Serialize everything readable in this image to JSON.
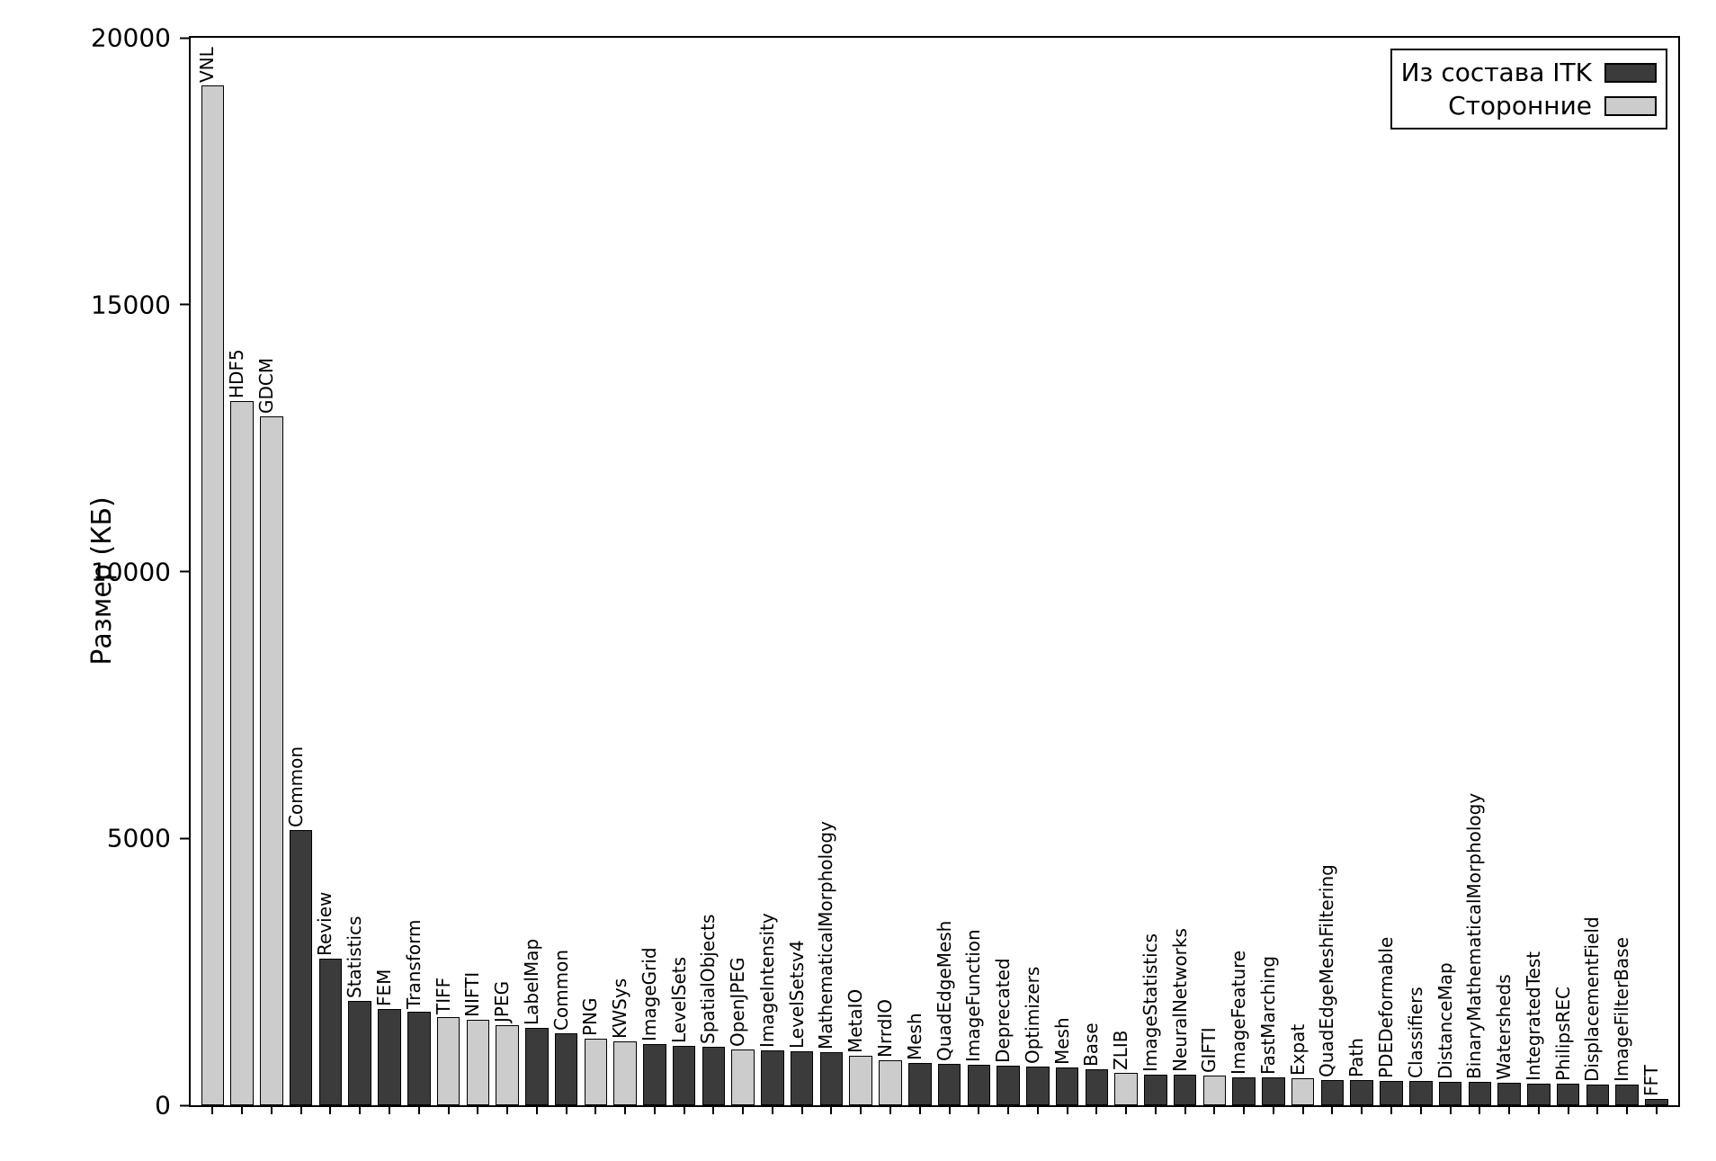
{
  "chart": {
    "type": "bar",
    "ylabel": "Размер (КБ)",
    "ylim": [
      0,
      20000
    ],
    "ytick_step": 5000,
    "yticks": [
      0,
      5000,
      10000,
      15000,
      20000
    ],
    "background_color": "#ffffff",
    "axis_color": "#000000",
    "label_fontsize": 30,
    "tick_fontsize": 28,
    "barlabel_fontsize": 20,
    "colors": {
      "itk": "#3b3b3b",
      "thirdparty": "#cccccc",
      "border": "#000000"
    },
    "legend": {
      "items": [
        {
          "label": "Из состава ITK",
          "series": "itk"
        },
        {
          "label": "Сторонние",
          "series": "thirdparty"
        }
      ]
    },
    "bars": [
      {
        "label": "VNL",
        "value": 19100,
        "series": "thirdparty"
      },
      {
        "label": "HDF5",
        "value": 13200,
        "series": "thirdparty"
      },
      {
        "label": "GDCM",
        "value": 12900,
        "series": "thirdparty"
      },
      {
        "label": "Common",
        "value": 5150,
        "series": "itk"
      },
      {
        "label": "Review",
        "value": 2750,
        "series": "itk"
      },
      {
        "label": "Statistics",
        "value": 1950,
        "series": "itk"
      },
      {
        "label": "FEM",
        "value": 1800,
        "series": "itk"
      },
      {
        "label": "Transform",
        "value": 1750,
        "series": "itk"
      },
      {
        "label": "TIFF",
        "value": 1650,
        "series": "thirdparty"
      },
      {
        "label": "NIFTI",
        "value": 1600,
        "series": "thirdparty"
      },
      {
        "label": "JPEG",
        "value": 1500,
        "series": "thirdparty"
      },
      {
        "label": "LabelMap",
        "value": 1450,
        "series": "itk"
      },
      {
        "label": "Common",
        "value": 1350,
        "series": "itk"
      },
      {
        "label": "PNG",
        "value": 1250,
        "series": "thirdparty"
      },
      {
        "label": "KWSys",
        "value": 1200,
        "series": "thirdparty"
      },
      {
        "label": "ImageGrid",
        "value": 1150,
        "series": "itk"
      },
      {
        "label": "LevelSets",
        "value": 1120,
        "series": "itk"
      },
      {
        "label": "SpatialObjects",
        "value": 1100,
        "series": "itk"
      },
      {
        "label": "OpenJPEG",
        "value": 1050,
        "series": "thirdparty"
      },
      {
        "label": "ImageIntensity",
        "value": 1030,
        "series": "itk"
      },
      {
        "label": "LevelSetsv4",
        "value": 1010,
        "series": "itk"
      },
      {
        "label": "MathematicalMorphology",
        "value": 1000,
        "series": "itk"
      },
      {
        "label": "MetaIO",
        "value": 920,
        "series": "thirdparty"
      },
      {
        "label": "NrrdIO",
        "value": 850,
        "series": "thirdparty"
      },
      {
        "label": "Mesh",
        "value": 800,
        "series": "itk"
      },
      {
        "label": "QuadEdgeMesh",
        "value": 780,
        "series": "itk"
      },
      {
        "label": "ImageFunction",
        "value": 760,
        "series": "itk"
      },
      {
        "label": "Deprecated",
        "value": 740,
        "series": "itk"
      },
      {
        "label": "Optimizers",
        "value": 720,
        "series": "itk"
      },
      {
        "label": "Mesh",
        "value": 700,
        "series": "itk"
      },
      {
        "label": "Base",
        "value": 680,
        "series": "itk"
      },
      {
        "label": "ZLIB",
        "value": 600,
        "series": "thirdparty"
      },
      {
        "label": "ImageStatistics",
        "value": 580,
        "series": "itk"
      },
      {
        "label": "NeuralNetworks",
        "value": 570,
        "series": "itk"
      },
      {
        "label": "GIFTI",
        "value": 550,
        "series": "thirdparty"
      },
      {
        "label": "ImageFeature",
        "value": 530,
        "series": "itk"
      },
      {
        "label": "FastMarching",
        "value": 520,
        "series": "itk"
      },
      {
        "label": "Expat",
        "value": 500,
        "series": "thirdparty"
      },
      {
        "label": "QuadEdgeMeshFiltering",
        "value": 480,
        "series": "itk"
      },
      {
        "label": "Path",
        "value": 470,
        "series": "itk"
      },
      {
        "label": "PDEDeformable",
        "value": 460,
        "series": "itk"
      },
      {
        "label": "Classifiers",
        "value": 450,
        "series": "itk"
      },
      {
        "label": "DistanceMap",
        "value": 440,
        "series": "itk"
      },
      {
        "label": "BinaryMathematicalMorphology",
        "value": 430,
        "series": "itk"
      },
      {
        "label": "Watersheds",
        "value": 420,
        "series": "itk"
      },
      {
        "label": "IntegratedTest",
        "value": 410,
        "series": "itk"
      },
      {
        "label": "PhilipsREC",
        "value": 400,
        "series": "itk"
      },
      {
        "label": "DisplacementField",
        "value": 390,
        "series": "itk"
      },
      {
        "label": "ImageFilterBase",
        "value": 380,
        "series": "itk"
      },
      {
        "label": "FFT",
        "value": 120,
        "series": "itk"
      }
    ]
  }
}
